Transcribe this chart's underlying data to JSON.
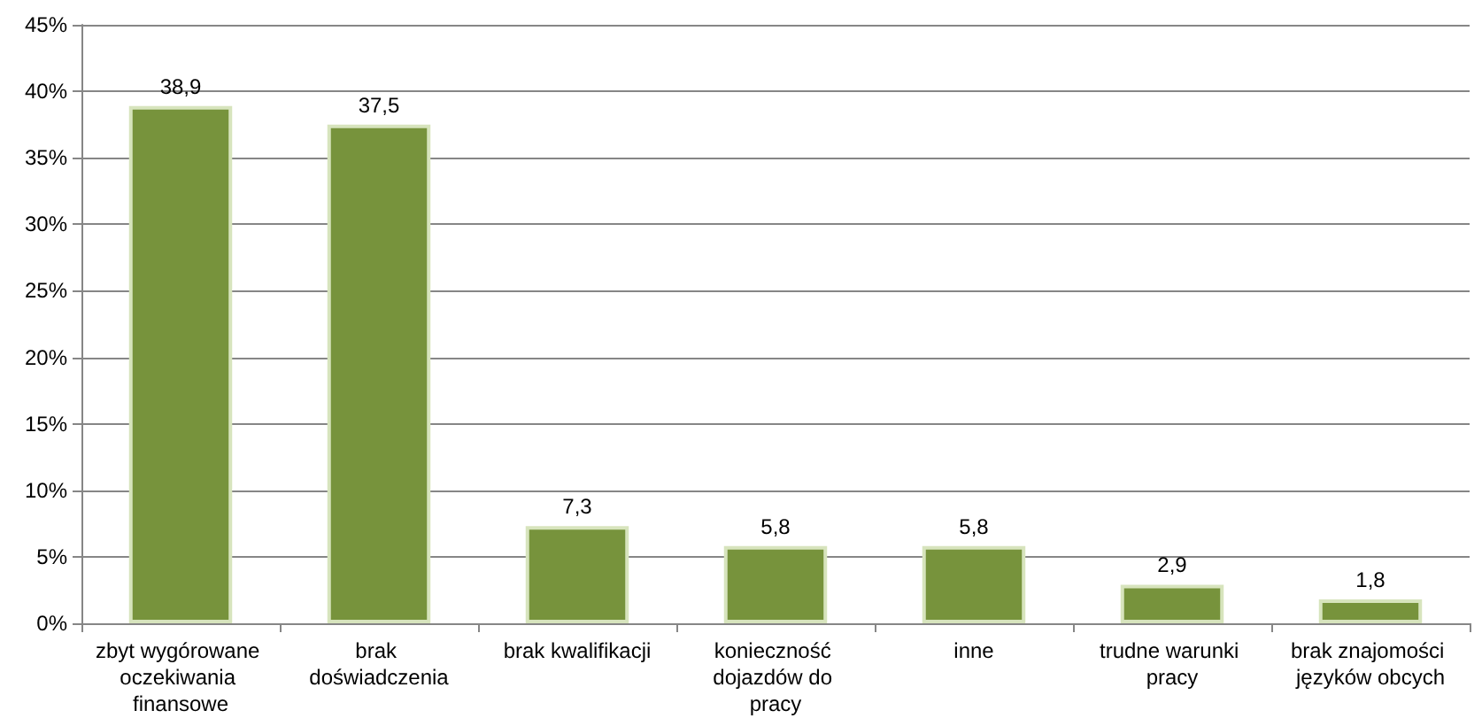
{
  "chart_data": {
    "type": "bar",
    "categories": [
      "zbyt wygórowane oczekiwania finansowe",
      "brak doświadczenia",
      "brak kwalifikacji",
      "konieczność dojazdów do pracy",
      "inne",
      "trudne warunki pracy",
      "brak znajomości języków obcych"
    ],
    "values": [
      38.9,
      37.5,
      7.3,
      5.8,
      5.8,
      2.9,
      1.8
    ],
    "value_labels": [
      "38,9",
      "37,5",
      "7,3",
      "5,8",
      "5,8",
      "2,9",
      "1,8"
    ],
    "color": "#77933c",
    "ylim": [
      0,
      45
    ],
    "yticks": [
      {
        "value": 0,
        "label": "0%"
      },
      {
        "value": 5,
        "label": "5%"
      },
      {
        "value": 10,
        "label": "10%"
      },
      {
        "value": 15,
        "label": "15%"
      },
      {
        "value": 20,
        "label": "20%"
      },
      {
        "value": 25,
        "label": "25%"
      },
      {
        "value": 30,
        "label": "30%"
      },
      {
        "value": 35,
        "label": "35%"
      },
      {
        "value": 40,
        "label": "40%"
      },
      {
        "value": 45,
        "label": "45%"
      }
    ],
    "grid": "y"
  }
}
